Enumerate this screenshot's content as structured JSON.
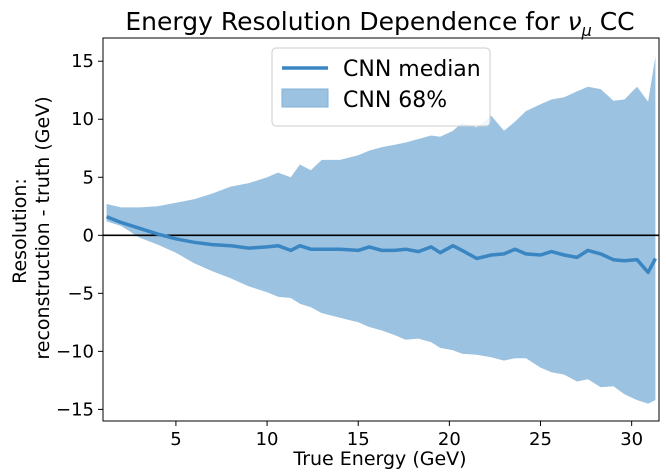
{
  "chart_data": {
    "type": "area",
    "title_main": "Energy Resolution Dependence for ",
    "title_nu": "ν",
    "title_mu": "μ",
    "title_end": " CC",
    "xlabel": "True Energy (GeV)",
    "ylabel_line1": "Resolution:",
    "ylabel_line2": "reconstruction - truth (GeV)",
    "xlim": [
      1.0,
      31.5
    ],
    "ylim": [
      -16,
      17
    ],
    "xticks": [
      5,
      10,
      15,
      20,
      25,
      30
    ],
    "yticks": [
      -15,
      -10,
      -5,
      0,
      5,
      10,
      15
    ],
    "grid": false,
    "legend_position": "top-center",
    "zero_line": 0,
    "series": [
      {
        "name": "CNN median",
        "kind": "line",
        "color": "#3a86c3",
        "x": [
          1.2,
          2,
          3,
          4,
          5,
          6,
          7,
          8,
          9,
          10,
          10.6,
          11.3,
          11.8,
          12.4,
          13,
          14,
          15,
          15.6,
          16.3,
          17,
          17.6,
          18.3,
          19,
          19.5,
          20.2,
          20.7,
          21.5,
          22.3,
          23,
          23.6,
          24.2,
          25,
          25.6,
          26.3,
          27,
          27.6,
          28.3,
          29,
          29.6,
          30.3,
          30.9,
          31.3
        ],
        "y": [
          1.6,
          1.1,
          0.6,
          0.1,
          -0.3,
          -0.6,
          -0.8,
          -0.9,
          -1.1,
          -1.0,
          -0.9,
          -1.3,
          -0.9,
          -1.2,
          -1.2,
          -1.2,
          -1.3,
          -1.0,
          -1.3,
          -1.3,
          -1.2,
          -1.4,
          -1.0,
          -1.5,
          -0.9,
          -1.3,
          -2.0,
          -1.7,
          -1.6,
          -1.2,
          -1.6,
          -1.7,
          -1.4,
          -1.7,
          -1.9,
          -1.3,
          -1.6,
          -2.1,
          -2.2,
          -2.1,
          -3.2,
          -2.0
        ]
      },
      {
        "name": "CNN 68%",
        "kind": "band",
        "color": "#9bc2e0",
        "x": [
          1.2,
          2,
          3,
          4,
          5,
          6,
          7,
          8,
          9,
          10,
          10.6,
          11.3,
          11.8,
          12.4,
          13,
          14,
          15,
          15.6,
          16.3,
          17,
          17.6,
          18.3,
          19,
          19.5,
          20.2,
          20.7,
          21.5,
          22.3,
          23,
          23.6,
          24.2,
          25,
          25.6,
          26.3,
          27,
          27.6,
          28.3,
          29,
          29.6,
          30.3,
          30.9,
          31.3
        ],
        "upper": [
          2.7,
          2.4,
          2.4,
          2.5,
          2.8,
          3.1,
          3.6,
          4.2,
          4.5,
          5.0,
          5.4,
          5.0,
          6.1,
          5.6,
          6.5,
          6.5,
          6.9,
          7.3,
          7.6,
          7.8,
          8.0,
          8.3,
          8.6,
          8.5,
          9.0,
          9.7,
          9.3,
          10.3,
          9.0,
          9.8,
          10.7,
          11.3,
          11.7,
          11.9,
          12.4,
          12.8,
          12.6,
          11.6,
          11.7,
          12.8,
          11.5,
          15.4
        ],
        "lower": [
          1.2,
          0.8,
          -0.2,
          -0.8,
          -1.5,
          -2.4,
          -3.1,
          -3.7,
          -4.4,
          -4.9,
          -5.3,
          -5.4,
          -5.9,
          -6.2,
          -6.7,
          -7.1,
          -7.5,
          -7.9,
          -8.2,
          -8.6,
          -9.0,
          -8.9,
          -9.2,
          -9.7,
          -9.9,
          -10.2,
          -10.3,
          -10.5,
          -10.8,
          -10.6,
          -10.6,
          -11.4,
          -11.8,
          -12.0,
          -12.6,
          -12.4,
          -13.1,
          -13.0,
          -13.7,
          -14.2,
          -14.5,
          -14.2
        ]
      }
    ]
  }
}
